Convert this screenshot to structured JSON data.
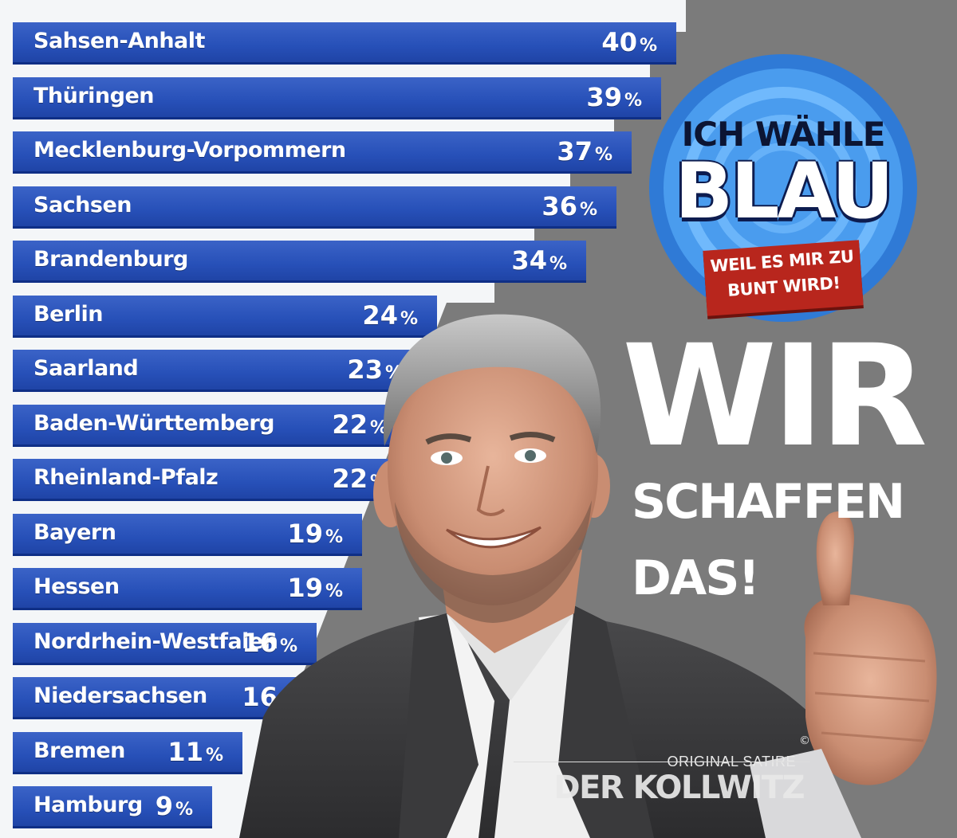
{
  "chart_data": {
    "type": "bar",
    "orientation": "horizontal",
    "categories": [
      "Sahsen-Anhalt",
      "Thüringen",
      "Mecklenburg-Vorpommern",
      "Sachsen",
      "Brandenburg",
      "Berlin",
      "Saarland",
      "Baden-Württemberg",
      "Rheinland-Pfalz",
      "Bayern",
      "Hessen",
      "Nordrhein-Westfalen",
      "Niedersachsen",
      "Bremen",
      "Hamburg"
    ],
    "values": [
      40,
      39,
      37,
      36,
      34,
      24,
      23,
      22,
      22,
      19,
      19,
      16,
      16,
      11,
      9
    ],
    "value_labels": [
      "40",
      "39",
      "37",
      "36",
      "34",
      "24",
      "23",
      "22",
      "22",
      "19",
      "19",
      "16",
      "16",
      "11",
      "9"
    ],
    "unit": "%",
    "title": "",
    "xlabel": "",
    "ylabel": "",
    "bar_color": "#2a54bc"
  },
  "badge": {
    "line1": "ICH WÄHLE",
    "line2": "BLAU",
    "ribbon_line1": "WEIL ES MIR ZU",
    "ribbon_line2": "BUNT WIRD!"
  },
  "slogan": {
    "line1": "WIR",
    "line2": "SCHAFFEN",
    "line3": "DAS!"
  },
  "watermark": {
    "top": "ORIGINAL SATIRE",
    "copyright": "©",
    "name": "DER KOLLWITZ"
  },
  "colors": {
    "background": "#7b7b7b",
    "bar": "#2a54bc",
    "badge_blue": "#3e8de6",
    "ribbon_red": "#b8261d"
  }
}
